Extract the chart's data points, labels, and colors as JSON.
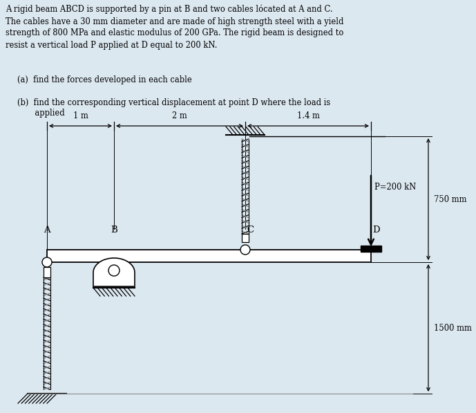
{
  "background_color": "#dce8f0",
  "title_text": "A rigid beam ABCD is supported by a pin at B and two cables lócated at A and C.\nThe cables have a 30 mm diameter and are made of high strength steel with a yield\nstrength of 800 MPa and elastic modulus of 200 GPa. The rigid beam is designed to\nresist a vertical load P applied at D equal to 200 kN.",
  "part_a": "(a)  find the forces developed in each cable",
  "part_b_line1": "(b)  find the corresponding vertical displacement at point D where the load is",
  "part_b_line2": "       applied",
  "dim_1m": "1 m",
  "dim_2m": "2 m",
  "dim_14m": "1.4 m",
  "label_P": "P=200 kN",
  "label_750": "750 mm",
  "label_1500": "1500 mm",
  "label_A": "A",
  "label_B": "B",
  "label_C": "C",
  "label_D": "D",
  "text_color": "#000000",
  "fig_width": 6.89,
  "fig_height": 5.97
}
